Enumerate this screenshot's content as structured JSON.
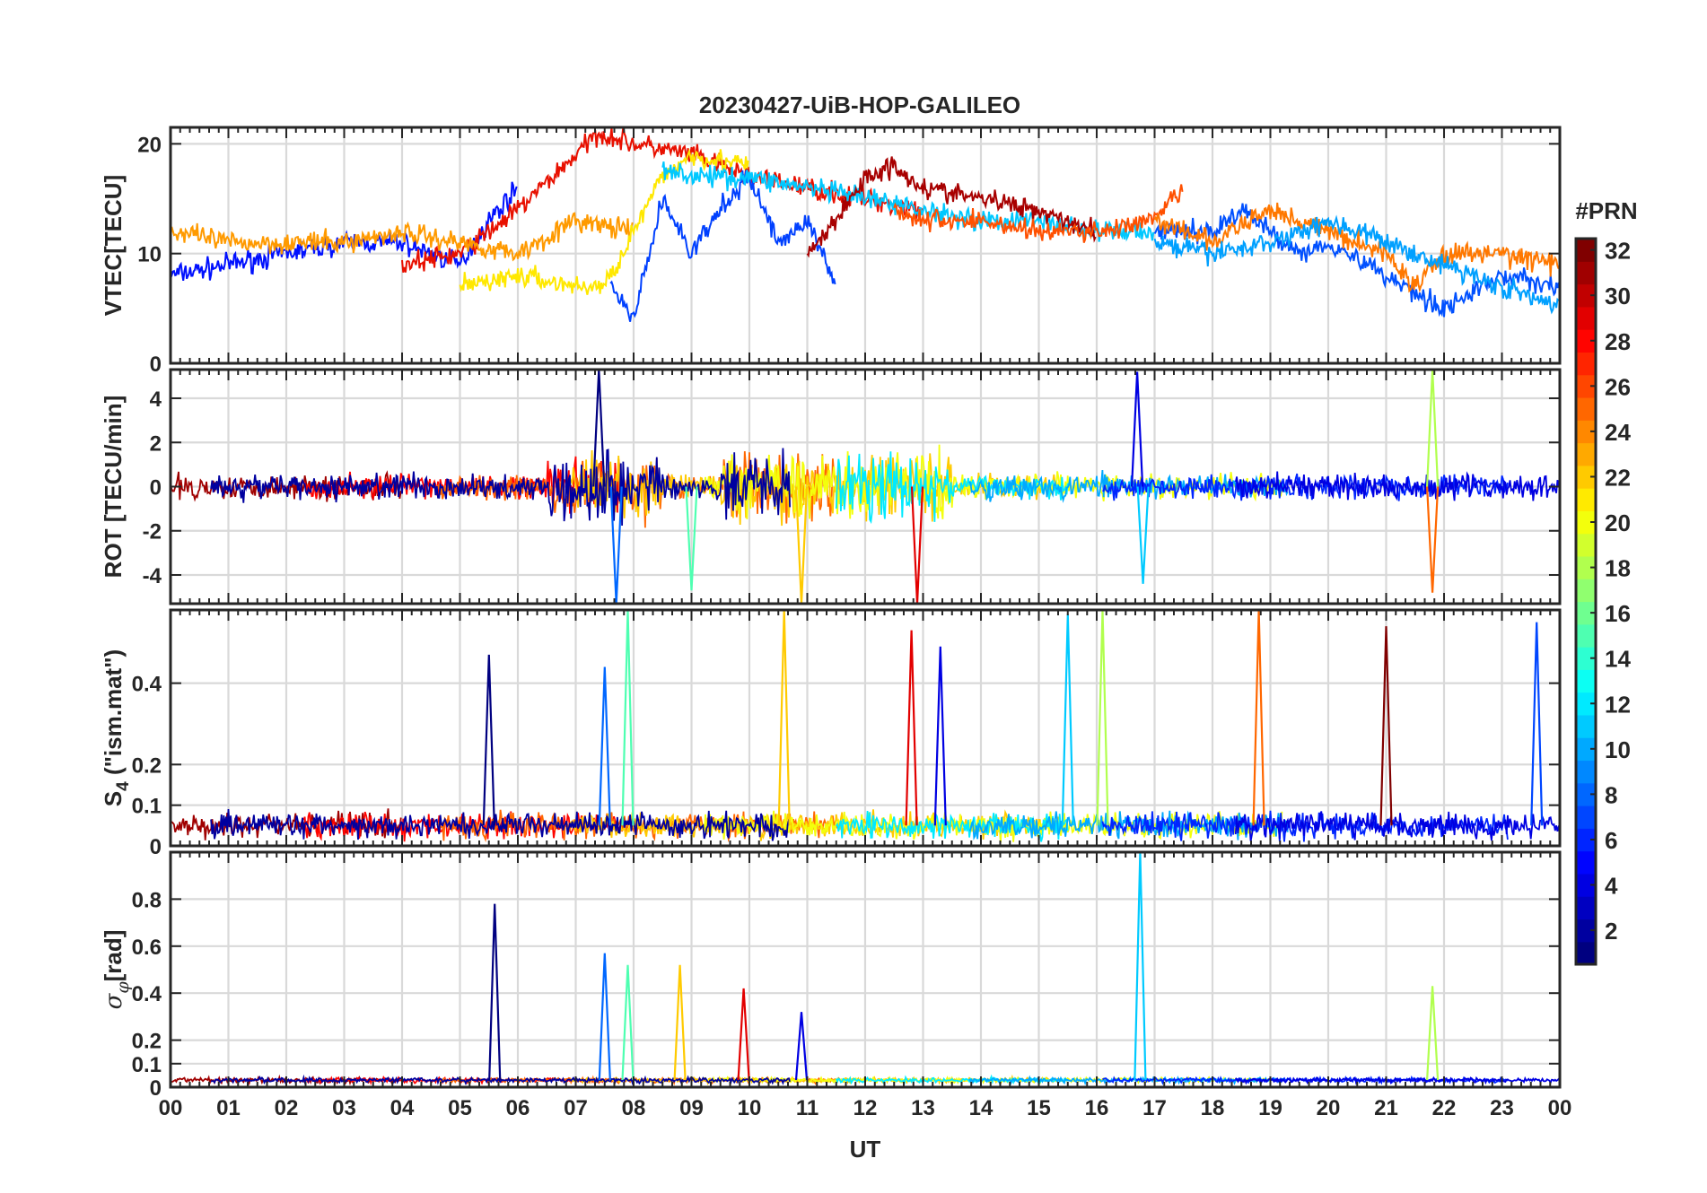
{
  "figure_title": "20230427-UiB-HOP-GALILEO",
  "colorbar": {
    "title": "#PRN",
    "min": 1,
    "max": 32,
    "ticks": [
      "2",
      "4",
      "6",
      "8",
      "10",
      "12",
      "14",
      "16",
      "18",
      "20",
      "22",
      "24",
      "26",
      "28",
      "30",
      "32"
    ],
    "colormap": "jet"
  },
  "x_axis": {
    "label": "UT",
    "range_hours": [
      0,
      24
    ],
    "tick_labels": [
      "00",
      "01",
      "02",
      "03",
      "04",
      "05",
      "06",
      "07",
      "08",
      "09",
      "10",
      "11",
      "12",
      "13",
      "14",
      "15",
      "16",
      "17",
      "18",
      "19",
      "20",
      "21",
      "22",
      "23",
      "00"
    ]
  },
  "chart_data": [
    {
      "type": "line",
      "ylabel": "VTEC[TECU]",
      "ylim": [
        0,
        21.5
      ],
      "yticks": [
        "0",
        "10",
        "20"
      ],
      "grid": true,
      "series_note_values": "approximate envelope per series, x in UT hours",
      "series": [
        {
          "prn": 2,
          "color": "#0010ff",
          "x": [
            0,
            1,
            2,
            3,
            4,
            5,
            5.5,
            6
          ],
          "y": [
            8,
            9,
            10,
            11,
            11,
            9,
            13,
            16
          ]
        },
        {
          "prn": 28,
          "color": "#e81000",
          "x": [
            4,
            5,
            6,
            7,
            7.4,
            8,
            9,
            10,
            11,
            12,
            13
          ],
          "y": [
            9,
            10,
            14,
            19,
            21,
            20,
            19,
            17,
            16,
            15,
            14
          ]
        },
        {
          "prn": 22,
          "color": "#ff9a00",
          "x": [
            0,
            1,
            2,
            3,
            4,
            5,
            6,
            7,
            8
          ],
          "y": [
            12,
            11,
            11,
            11,
            12,
            11,
            10,
            13,
            12
          ]
        },
        {
          "prn": 20,
          "color": "#ffe800",
          "x": [
            5,
            6,
            7,
            7.5,
            8,
            8.5,
            9,
            10
          ],
          "y": [
            7,
            8,
            7,
            7,
            12,
            17,
            19,
            18
          ]
        },
        {
          "prn": 4,
          "color": "#0040ff",
          "x": [
            7.6,
            8,
            8.5,
            9,
            9.5,
            10,
            10.5,
            11,
            11.5
          ],
          "y": [
            7,
            4,
            15,
            10,
            14,
            17,
            11,
            13,
            7
          ]
        },
        {
          "prn": 12,
          "color": "#00c8ff",
          "x": [
            8.5,
            9,
            10,
            11,
            12,
            13,
            14,
            15,
            16,
            17
          ],
          "y": [
            18,
            17,
            17,
            16,
            15,
            14,
            13,
            13,
            12,
            12
          ]
        },
        {
          "prn": 31,
          "color": "#a80000",
          "x": [
            11,
            11.5,
            12,
            12.5,
            13,
            14,
            15,
            16
          ],
          "y": [
            10,
            13,
            17,
            18,
            16,
            15,
            14,
            12
          ]
        },
        {
          "prn": 25,
          "color": "#ff5000",
          "x": [
            12.5,
            13,
            14,
            15,
            16,
            17,
            17.5
          ],
          "y": [
            14,
            13,
            13,
            12,
            12,
            13,
            16
          ]
        },
        {
          "prn": 6,
          "color": "#0050ff",
          "x": [
            17,
            18,
            18.5,
            19,
            19.5,
            20,
            21,
            22,
            23,
            24
          ],
          "y": [
            12,
            12,
            14,
            12,
            10,
            11,
            8,
            5,
            8,
            7
          ]
        },
        {
          "prn": 26,
          "color": "#ff7800",
          "x": [
            17,
            18,
            19,
            20,
            21,
            21.5,
            22,
            23,
            24
          ],
          "y": [
            13,
            11,
            14,
            12,
            10,
            7,
            10,
            10,
            9
          ]
        },
        {
          "prn": 10,
          "color": "#00a0ff",
          "x": [
            17,
            18,
            19,
            20,
            21,
            22,
            23,
            24
          ],
          "y": [
            11,
            10,
            11,
            13,
            11,
            9,
            7,
            5
          ]
        }
      ]
    },
    {
      "type": "line",
      "ylabel": "ROT [TECU/min]",
      "ylim": [
        -5.3,
        5.3
      ],
      "yticks": [
        "-4",
        "-2",
        "0",
        "2",
        "4"
      ],
      "grid": true,
      "description_values": "noisy series centred on 0; largest excursions near 07-08 UT (about ±5), 10-12 UT (about ±4), 16.8 UT (about +4/-4) and 21.8 UT (about ±5)",
      "notable_peaks": [
        {
          "x": 7.4,
          "y": 5.3
        },
        {
          "x": 7.7,
          "y": -5.3
        },
        {
          "x": 9.0,
          "y": -4.7
        },
        {
          "x": 10.9,
          "y": -5.3
        },
        {
          "x": 12.9,
          "y": -5.3
        },
        {
          "x": 16.7,
          "y": 5.2
        },
        {
          "x": 16.8,
          "y": -4.4
        },
        {
          "x": 21.8,
          "y": 5.3
        },
        {
          "x": 21.8,
          "y": -4.8
        }
      ]
    },
    {
      "type": "line",
      "ylabel": "S4 (\"ism.mat\")",
      "ylabel_main": "S",
      "ylabel_sub": "4",
      "ylabel_rest": " (\"ism.mat\")",
      "ylim": [
        0,
        0.58
      ],
      "yticks": [
        "0",
        "0.1",
        "0.2",
        "0.4"
      ],
      "grid": true,
      "description_values": "baseline about 0.03-0.08 with bursts; notable peaks listed",
      "notable_peaks": [
        {
          "x": 5.5,
          "y": 0.47
        },
        {
          "x": 7.5,
          "y": 0.44
        },
        {
          "x": 7.9,
          "y": 0.58
        },
        {
          "x": 10.6,
          "y": 0.58
        },
        {
          "x": 12.8,
          "y": 0.53
        },
        {
          "x": 13.3,
          "y": 0.49
        },
        {
          "x": 15.5,
          "y": 0.57
        },
        {
          "x": 16.1,
          "y": 0.58
        },
        {
          "x": 18.8,
          "y": 0.58
        },
        {
          "x": 21.0,
          "y": 0.54
        },
        {
          "x": 23.6,
          "y": 0.55
        }
      ]
    },
    {
      "type": "line",
      "ylabel": "σφ[rad]",
      "ylabel_main": "σ",
      "ylabel_sub": "φ",
      "ylabel_rest": "[rad]",
      "ylim": [
        0,
        1.0
      ],
      "yticks": [
        "0",
        "0.1",
        "0.2",
        "0.4",
        "0.6",
        "0.8"
      ],
      "grid": true,
      "description_values": "baseline about 0.03; spikes listed",
      "notable_peaks": [
        {
          "x": 5.6,
          "y": 0.78
        },
        {
          "x": 7.5,
          "y": 0.57
        },
        {
          "x": 7.9,
          "y": 0.52
        },
        {
          "x": 8.8,
          "y": 0.52
        },
        {
          "x": 9.9,
          "y": 0.42
        },
        {
          "x": 10.9,
          "y": 0.32
        },
        {
          "x": 16.75,
          "y": 1.0
        },
        {
          "x": 21.8,
          "y": 0.43
        }
      ]
    }
  ]
}
